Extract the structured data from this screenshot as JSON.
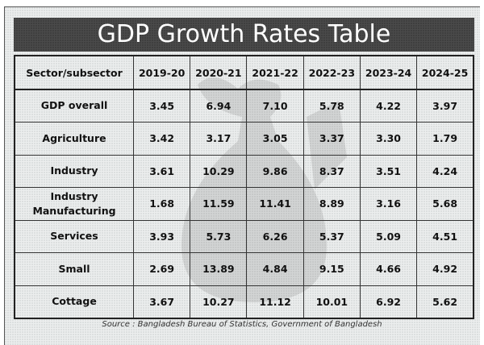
{
  "title": "GDP Growth Rates Table",
  "table": {
    "headers": [
      "Sector/subsector",
      "2019-20",
      "2020-21",
      "2021-22",
      "2022-23",
      "2023-24",
      "2024-25"
    ],
    "rows": [
      {
        "label": "GDP overall",
        "values": [
          "3.45",
          "6.94",
          "7.10",
          "5.78",
          "4.22",
          "3.97"
        ]
      },
      {
        "label": "Agriculture",
        "values": [
          "3.42",
          "3.17",
          "3.05",
          "3.37",
          "3.30",
          "1.79"
        ]
      },
      {
        "label": "Industry",
        "values": [
          "3.61",
          "10.29",
          "9.86",
          "8.37",
          "3.51",
          "4.24"
        ]
      },
      {
        "label": "Industry Manufacturing",
        "values": [
          "1.68",
          "11.59",
          "11.41",
          "8.89",
          "3.16",
          "5.68"
        ]
      },
      {
        "label": "Services",
        "values": [
          "3.93",
          "5.73",
          "6.26",
          "5.37",
          "5.09",
          "4.51"
        ]
      },
      {
        "label": "Small",
        "values": [
          "2.69",
          "13.89",
          "4.84",
          "9.15",
          "4.66",
          "4.92"
        ]
      },
      {
        "label": "Cottage",
        "values": [
          "3.67",
          "10.27",
          "11.12",
          "10.01",
          "6.92",
          "5.62"
        ]
      }
    ]
  },
  "source": "Source : Bangladesh Bureau of Statistics, Government of Bangladesh",
  "colors": {
    "title_bar": "#4a4a4a",
    "title_text": "#ffffff",
    "background": "#eceeee",
    "border": "#222222"
  }
}
